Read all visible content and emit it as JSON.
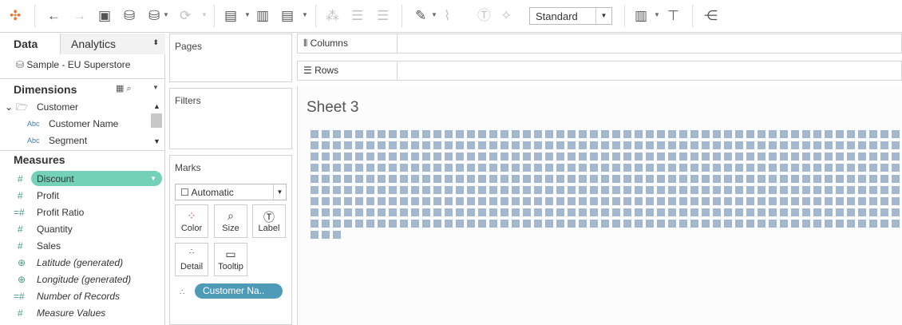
{
  "toolbar": {
    "view_mode": "Standard",
    "icons": [
      "tableau-logo",
      "undo",
      "redo",
      "save",
      "new-data-source",
      "pause-auto-updates",
      "refresh",
      "new-worksheet",
      "duplicate-sheet",
      "clear-sheet",
      "swap",
      "sort-ascending",
      "sort-descending",
      "highlight",
      "attach",
      "label-text",
      "pin",
      "show-me",
      "presentation-mode",
      "share"
    ]
  },
  "sidebar": {
    "tabs": [
      "Data",
      "Analytics"
    ],
    "datasource": "Sample - EU Superstore",
    "dimensions_title": "Dimensions",
    "dimension_folder": "Customer",
    "dimensions": [
      {
        "type": "Abc",
        "label": "Customer Name"
      },
      {
        "type": "Abc",
        "label": "Segment"
      }
    ],
    "measures_title": "Measures",
    "measures": [
      {
        "icon": "#",
        "label": "Discount",
        "selected": true
      },
      {
        "icon": "#",
        "label": "Profit"
      },
      {
        "icon": "=#",
        "label": "Profit Ratio"
      },
      {
        "icon": "#",
        "label": "Quantity"
      },
      {
        "icon": "#",
        "label": "Sales"
      },
      {
        "icon": "globe",
        "label": "Latitude (generated)",
        "italic": true
      },
      {
        "icon": "globe",
        "label": "Longitude (generated)",
        "italic": true
      },
      {
        "icon": "=#",
        "label": "Number of Records",
        "italic": true
      },
      {
        "icon": "#",
        "label": "Measure Values",
        "italic": true
      }
    ]
  },
  "cards": {
    "pages": "Pages",
    "filters": "Filters",
    "marks": "Marks",
    "mark_type": "Automatic",
    "mark_buttons": [
      "Color",
      "Size",
      "Label",
      "Detail",
      "Tooltip"
    ],
    "detail_pill": "Customer Na.."
  },
  "shelves": {
    "columns": "Columns",
    "rows": "Rows"
  },
  "view": {
    "title": "Sheet 3",
    "mark_color": "#a3b8cf",
    "mark_count": 480,
    "columns_visible": 53
  }
}
